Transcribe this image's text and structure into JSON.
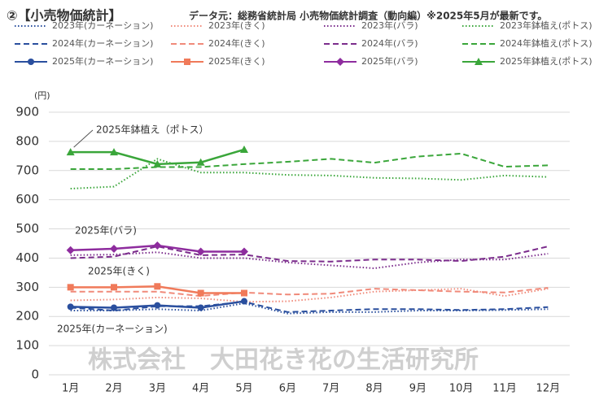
{
  "chart_data": {
    "type": "line",
    "title": "②【小売物価統計】",
    "subtitle": "データ元：総務省統計局 小売物価統計調査（動向編）※2025年5月が最新です。",
    "y_label": "(円)",
    "watermark": "株式会社　大田花き花の生活研究所",
    "categories": [
      "1月",
      "2月",
      "3月",
      "4月",
      "5月",
      "6月",
      "7月",
      "8月",
      "9月",
      "10月",
      "11月",
      "12月"
    ],
    "ylim": [
      0,
      900
    ],
    "yticks": [
      0,
      100,
      200,
      300,
      400,
      500,
      600,
      700,
      800,
      900
    ],
    "grid": true,
    "series": [
      {
        "name": "2023年(カーネーション)",
        "color": "#2a4f9e",
        "style": "dotted",
        "values": [
          220,
          220,
          225,
          220,
          245,
          210,
          215,
          215,
          220,
          220,
          222,
          225
        ]
      },
      {
        "name": "2023年(きく)",
        "color": "#f08a7a",
        "style": "dotted",
        "values": [
          255,
          258,
          265,
          262,
          250,
          252,
          265,
          285,
          290,
          295,
          270,
          295
        ]
      },
      {
        "name": "2023年(バラ)",
        "color": "#7b2c8c",
        "style": "dotted",
        "values": [
          410,
          412,
          420,
          400,
          400,
          385,
          375,
          365,
          385,
          395,
          395,
          415
        ]
      },
      {
        "name": "2023年鉢植え(ポトス)",
        "color": "#3aa63a",
        "style": "dotted",
        "values": [
          638,
          645,
          740,
          693,
          693,
          685,
          683,
          675,
          673,
          668,
          683,
          678
        ]
      },
      {
        "name": "2024年(カーネーション)",
        "color": "#2a4f9e",
        "style": "dashed",
        "values": [
          230,
          220,
          235,
          235,
          250,
          215,
          220,
          225,
          225,
          222,
          225,
          232
        ]
      },
      {
        "name": "2024年(きく)",
        "color": "#f08a7a",
        "style": "dashed",
        "values": [
          285,
          285,
          285,
          270,
          282,
          275,
          278,
          295,
          290,
          285,
          282,
          298
        ]
      },
      {
        "name": "2024年(バラ)",
        "color": "#7b2c8c",
        "style": "dashed",
        "values": [
          400,
          405,
          440,
          410,
          412,
          390,
          388,
          395,
          395,
          390,
          405,
          440
        ]
      },
      {
        "name": "2024年鉢植え(ポトス)",
        "color": "#3aa63a",
        "style": "dashed",
        "values": [
          705,
          705,
          712,
          712,
          722,
          730,
          740,
          727,
          748,
          758,
          713,
          718
        ]
      },
      {
        "name": "2025年(カーネーション)",
        "color": "#2a4f9e",
        "style": "solid",
        "marker": "circle",
        "values": [
          233,
          230,
          238,
          230,
          252,
          null,
          null,
          null,
          null,
          null,
          null,
          null
        ]
      },
      {
        "name": "2025年(きく)",
        "color": "#f07a5a",
        "style": "solid",
        "marker": "square",
        "values": [
          300,
          300,
          303,
          280,
          280,
          null,
          null,
          null,
          null,
          null,
          null,
          null
        ]
      },
      {
        "name": "2025年(バラ)",
        "color": "#8e2c9e",
        "style": "solid",
        "marker": "diamond",
        "values": [
          427,
          432,
          443,
          422,
          422,
          null,
          null,
          null,
          null,
          null,
          null,
          null
        ]
      },
      {
        "name": "2025年鉢植え(ポトス)",
        "color": "#3aa63a",
        "style": "solid",
        "marker": "triangle",
        "values": [
          763,
          763,
          722,
          728,
          772,
          null,
          null,
          null,
          null,
          null,
          null,
          null
        ]
      }
    ],
    "annotations": [
      {
        "text": "2025年鉢植え（ポトス）",
        "series": 11
      },
      {
        "text": "2025年(バラ)",
        "series": 10
      },
      {
        "text": "2025年(きく)",
        "series": 9
      },
      {
        "text": "2025年(カーネーション)",
        "series": 8
      }
    ]
  }
}
